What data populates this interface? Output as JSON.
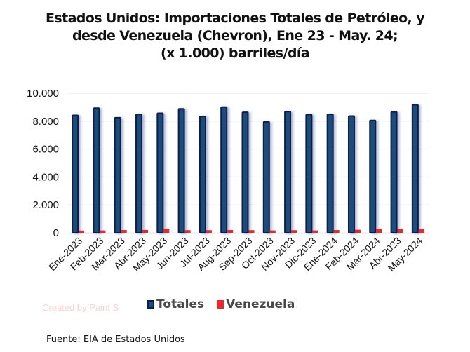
{
  "title_lines": [
    "Estados Unidos: Importaciones Totales de Petróleo, y",
    "desde Venezuela (Chevron), Ene 23 - May. 24;",
    "(x 1.000) barriles/día"
  ],
  "watermark": "Created by Paint S",
  "source": "Fuente: EIA de Estados Unidos",
  "colors": {
    "totales_fill": "#1f4e79",
    "totales_border": "#0a1f4d",
    "venezuela": "#e8282b",
    "gridline": "#e6e6e6",
    "axis": "#d0d0d0"
  },
  "chart_data": {
    "type": "bar",
    "title": "Estados Unidos: Importaciones Totales de Petróleo, y desde Venezuela (Chevron), Ene 23 - May. 24; (x 1.000) barriles/día",
    "xlabel": "",
    "ylabel": "",
    "ylim": [
      0,
      10000
    ],
    "yticks": [
      0,
      2000,
      4000,
      6000,
      8000,
      10000
    ],
    "ytick_labels": [
      "0",
      "2.000",
      "4.000",
      "6.000",
      "8.000",
      "10.000"
    ],
    "grid": true,
    "legend_position": "bottom",
    "categories": [
      "Ene-2023",
      "Feb-2023",
      "Mar-2023",
      "Abr-2023",
      "May-2023",
      "Jun-2023",
      "Jul-2023",
      "Aug-2023",
      "Sep-2023",
      "Oct-2023",
      "Nov-2023",
      "Dic-2023",
      "Ene-2024",
      "Feb-2024",
      "Mar-2024",
      "Abr-2023",
      "May-2024"
    ],
    "series": [
      {
        "name": "Totales",
        "values": [
          8470,
          8980,
          8300,
          8540,
          8620,
          8930,
          8390,
          9060,
          8690,
          8000,
          8740,
          8520,
          8540,
          8420,
          8100,
          8710,
          9220
        ]
      },
      {
        "name": "Venezuela",
        "values": [
          160,
          170,
          200,
          210,
          300,
          190,
          190,
          200,
          190,
          170,
          190,
          170,
          200,
          220,
          290,
          270,
          270
        ]
      }
    ]
  }
}
